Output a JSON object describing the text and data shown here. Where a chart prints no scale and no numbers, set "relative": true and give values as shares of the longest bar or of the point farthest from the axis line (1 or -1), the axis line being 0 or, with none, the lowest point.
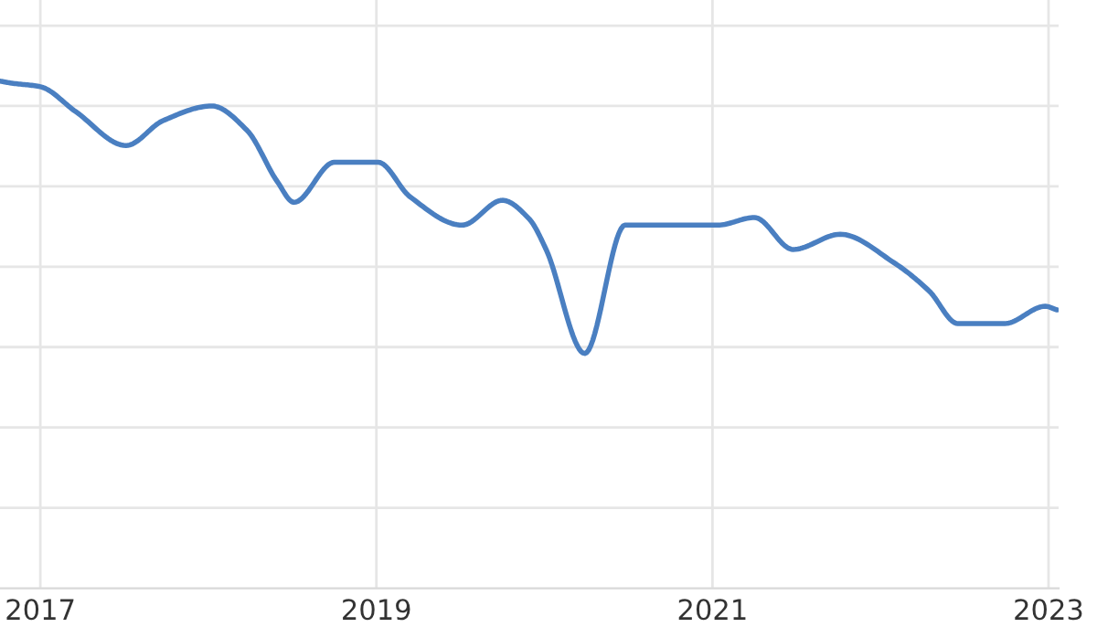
{
  "chart_data": {
    "type": "line",
    "relative": true,
    "grid": true,
    "line_style": "solid",
    "marker": "none",
    "xlim": [
      2016.76,
      2023.06
    ],
    "xticks": [
      2017,
      2019,
      2021,
      2023
    ],
    "series": [
      {
        "color": "#4a7fc1",
        "x": [
          2016.76,
          2016.83,
          2017.0,
          2017.21,
          2017.51,
          2017.73,
          2018.02,
          2018.23,
          2018.41,
          2018.51,
          2018.75,
          2019.01,
          2019.2,
          2019.51,
          2019.75,
          2019.91,
          2020.01,
          2020.24,
          2020.48,
          2021.03,
          2021.25,
          2021.48,
          2021.76,
          2022.08,
          2022.29,
          2022.46,
          2022.74,
          2022.98,
          2023.05
        ],
        "values": [
          1.0,
          0.996,
          0.989,
          0.94,
          0.873,
          0.922,
          0.951,
          0.903,
          0.802,
          0.761,
          0.84,
          0.84,
          0.772,
          0.716,
          0.765,
          0.728,
          0.668,
          0.463,
          0.716,
          0.716,
          0.731,
          0.668,
          0.698,
          0.642,
          0.586,
          0.522,
          0.522,
          0.556,
          0.549
        ]
      }
    ]
  }
}
